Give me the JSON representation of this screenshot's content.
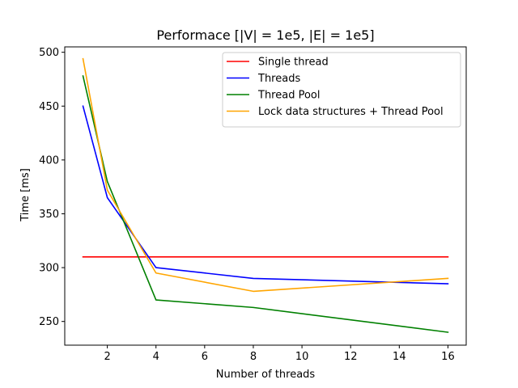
{
  "chart_data": {
    "type": "line",
    "title": "Performace [|V| = 1e5, |E| = 1e5]",
    "xlabel": "Number of threads",
    "ylabel": "Time [ms]",
    "xlim": [
      0.25,
      16.75
    ],
    "ylim": [
      228,
      505
    ],
    "xticks": [
      2,
      4,
      6,
      8,
      10,
      12,
      14,
      16
    ],
    "yticks": [
      250,
      300,
      350,
      400,
      450,
      500
    ],
    "legend_position": "upper-right",
    "grid": false,
    "series": [
      {
        "name": "Single thread",
        "color": "#ff0000",
        "x": [
          1,
          2,
          4,
          8,
          16
        ],
        "y": [
          310,
          310,
          310,
          310,
          310
        ]
      },
      {
        "name": "Threads",
        "color": "#0000ff",
        "x": [
          1,
          2,
          4,
          8,
          16
        ],
        "y": [
          450,
          365,
          300,
          290,
          285
        ]
      },
      {
        "name": "Thread Pool",
        "color": "#008000",
        "x": [
          1,
          2,
          4,
          8,
          16
        ],
        "y": [
          478,
          380,
          270,
          263,
          240
        ]
      },
      {
        "name": "Lock data structures + Thread Pool",
        "color": "#ffa500",
        "x": [
          1,
          2,
          4,
          8,
          16
        ],
        "y": [
          494,
          372,
          295,
          278,
          290
        ]
      }
    ]
  }
}
